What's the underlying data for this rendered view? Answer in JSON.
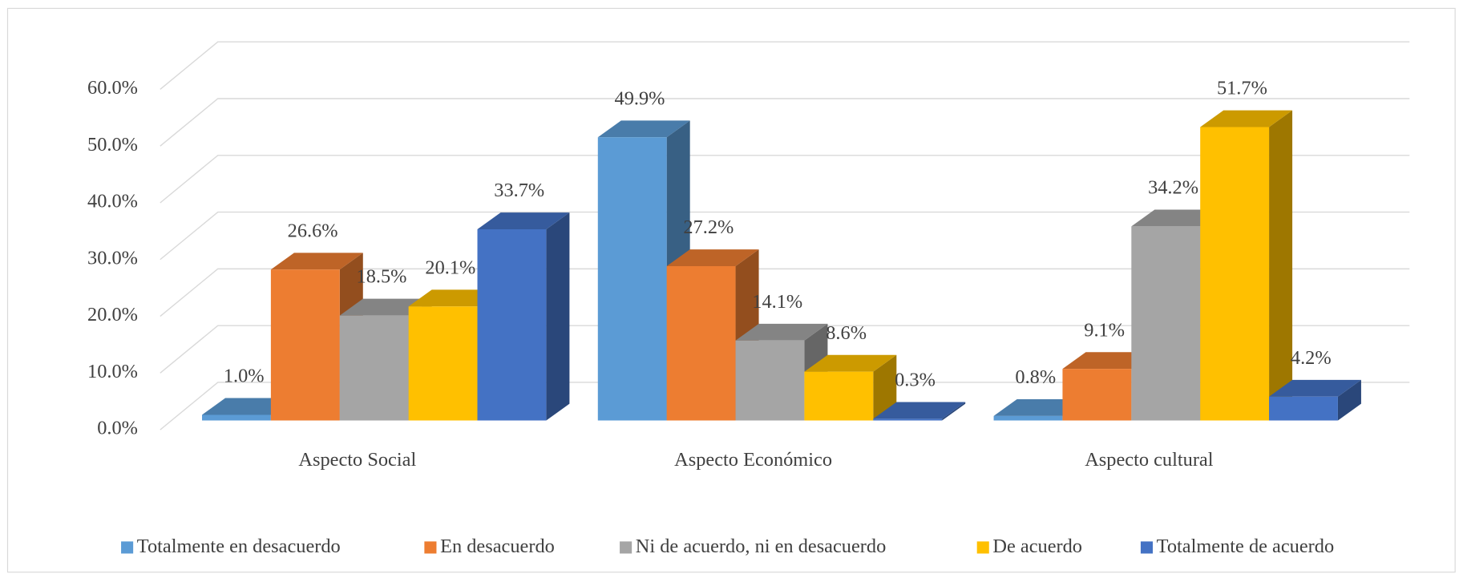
{
  "chart_data": {
    "type": "bar3d",
    "categories": [
      "Aspecto Social",
      "Aspecto Económico",
      "Aspecto cultural"
    ],
    "series": [
      {
        "name": "Totalmente en desacuerdo",
        "color": "#5b9bd5",
        "values": [
          1.0,
          49.9,
          0.8
        ],
        "value_labels": [
          "1.0%",
          "49.9%",
          "0.8%"
        ]
      },
      {
        "name": "En desacuerdo",
        "color": "#ed7d31",
        "values": [
          26.6,
          27.2,
          9.1
        ],
        "value_labels": [
          "26.6%",
          "27.2%",
          "9.1%"
        ]
      },
      {
        "name": "Ni de acuerdo, ni en desacuerdo",
        "color": "#a5a5a5",
        "values": [
          18.5,
          14.1,
          34.2
        ],
        "value_labels": [
          "18.5%",
          "14.1%",
          "34.2%"
        ]
      },
      {
        "name": "De acuerdo",
        "color": "#ffc000",
        "values": [
          20.1,
          8.6,
          51.7
        ],
        "value_labels": [
          "20.1%",
          "8.6%",
          "51.7%"
        ]
      },
      {
        "name": "Totalmente de acuerdo",
        "color": "#4472c4",
        "values": [
          33.7,
          0.3,
          4.2
        ],
        "value_labels": [
          "33.7%",
          "0.3%",
          "4.2%"
        ]
      }
    ],
    "ylim": [
      0,
      60
    ],
    "yticks": [
      {
        "value": 0,
        "label": "0.0%"
      },
      {
        "value": 10,
        "label": "10.0%"
      },
      {
        "value": 20,
        "label": "20.0%"
      },
      {
        "value": 30,
        "label": "30.0%"
      },
      {
        "value": 40,
        "label": "40.0%"
      },
      {
        "value": 50,
        "label": "50.0%"
      },
      {
        "value": 60,
        "label": "60.0%"
      }
    ],
    "grid": true,
    "legend": "bottom"
  }
}
